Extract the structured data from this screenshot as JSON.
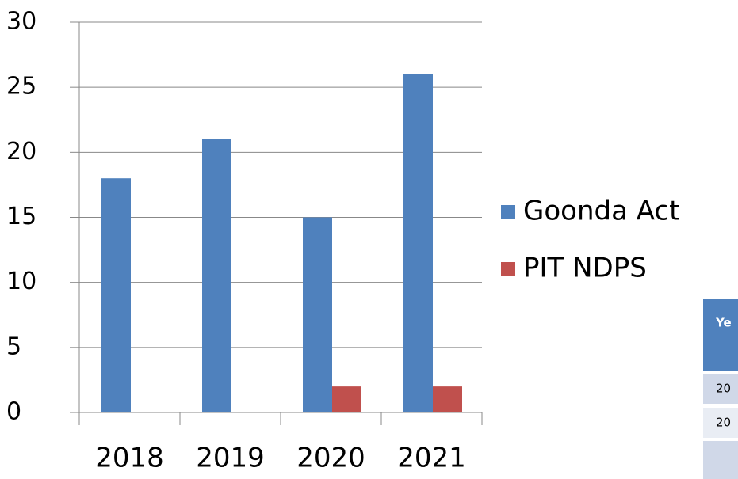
{
  "chart_data": {
    "type": "bar",
    "categories": [
      "2018",
      "2019",
      "2020",
      "2021"
    ],
    "series": [
      {
        "name": "Goonda Act",
        "color": "#4f81bd",
        "values": [
          18,
          21,
          15,
          26
        ]
      },
      {
        "name": "PIT NDPS",
        "color": "#c0504d",
        "values": [
          0,
          0,
          2,
          2
        ]
      }
    ],
    "ylim": [
      0,
      30
    ],
    "yticks": [
      0,
      5,
      10,
      15,
      20,
      25,
      30
    ],
    "grid": true,
    "legend": "right"
  },
  "table": {
    "header": [
      "Ye"
    ],
    "rows": [
      [
        "20"
      ],
      [
        "20"
      ],
      [
        null
      ]
    ]
  }
}
